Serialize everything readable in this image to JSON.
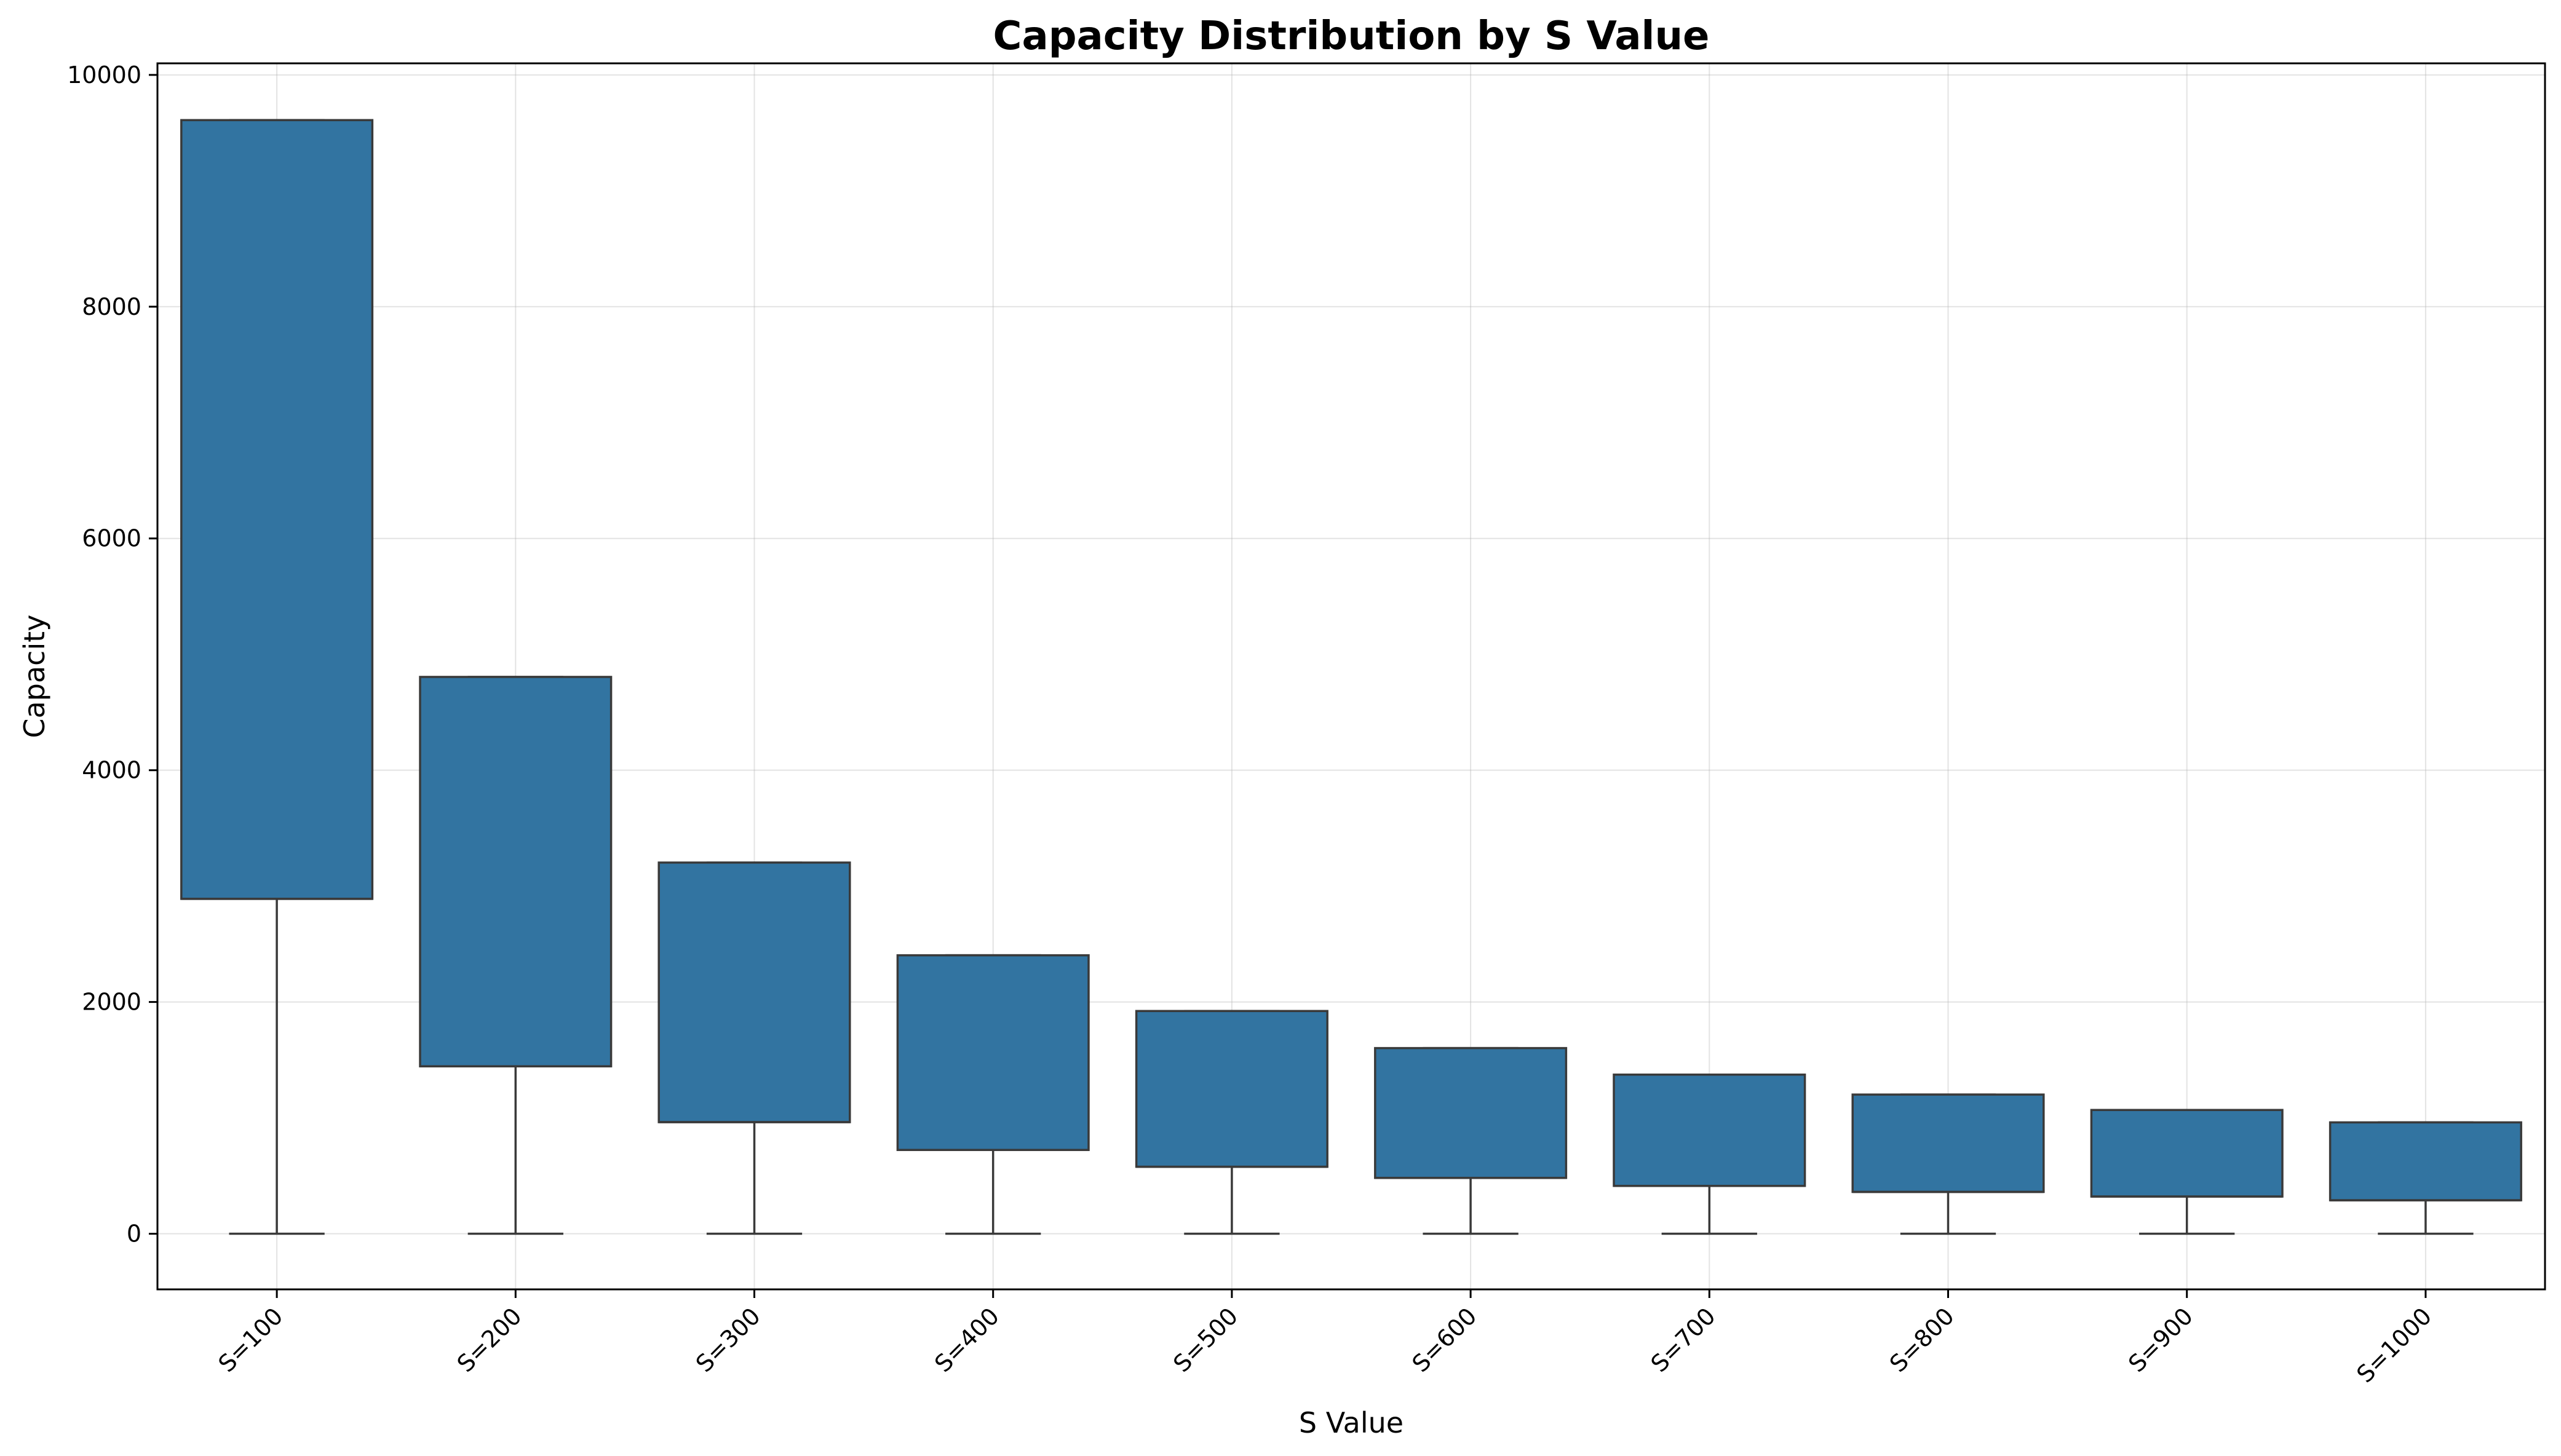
{
  "chart_data": {
    "type": "box",
    "title": "Capacity Distribution by S Value",
    "xlabel": "S Value",
    "ylabel": "Capacity",
    "ylim": [
      -480,
      10100
    ],
    "yticks": [
      0,
      2000,
      4000,
      6000,
      8000,
      10000
    ],
    "grid": true,
    "box_color": "#3274a1",
    "edge_color": "#3a3a3a",
    "categories": [
      "S=100",
      "S=200",
      "S=300",
      "S=400",
      "S=500",
      "S=600",
      "S=700",
      "S=800",
      "S=900",
      "S=1000"
    ],
    "boxes": [
      {
        "label": "S=100",
        "whislo": 0,
        "q1": 2890,
        "med": 2890,
        "q3": 9610,
        "whishi": 9610
      },
      {
        "label": "S=200",
        "whislo": 0,
        "q1": 1445,
        "med": 1445,
        "q3": 4805,
        "whishi": 4805
      },
      {
        "label": "S=300",
        "whislo": 0,
        "q1": 963,
        "med": 963,
        "q3": 3203,
        "whishi": 3203
      },
      {
        "label": "S=400",
        "whislo": 0,
        "q1": 723,
        "med": 723,
        "q3": 2403,
        "whishi": 2403
      },
      {
        "label": "S=500",
        "whislo": 0,
        "q1": 578,
        "med": 578,
        "q3": 1922,
        "whishi": 1922
      },
      {
        "label": "S=600",
        "whislo": 0,
        "q1": 482,
        "med": 482,
        "q3": 1602,
        "whishi": 1602
      },
      {
        "label": "S=700",
        "whislo": 0,
        "q1": 413,
        "med": 413,
        "q3": 1373,
        "whishi": 1373
      },
      {
        "label": "S=800",
        "whislo": 0,
        "q1": 361,
        "med": 361,
        "q3": 1201,
        "whishi": 1201
      },
      {
        "label": "S=900",
        "whislo": 0,
        "q1": 321,
        "med": 321,
        "q3": 1068,
        "whishi": 1068
      },
      {
        "label": "S=1000",
        "whislo": 0,
        "q1": 289,
        "med": 289,
        "q3": 961,
        "whishi": 961
      }
    ]
  }
}
